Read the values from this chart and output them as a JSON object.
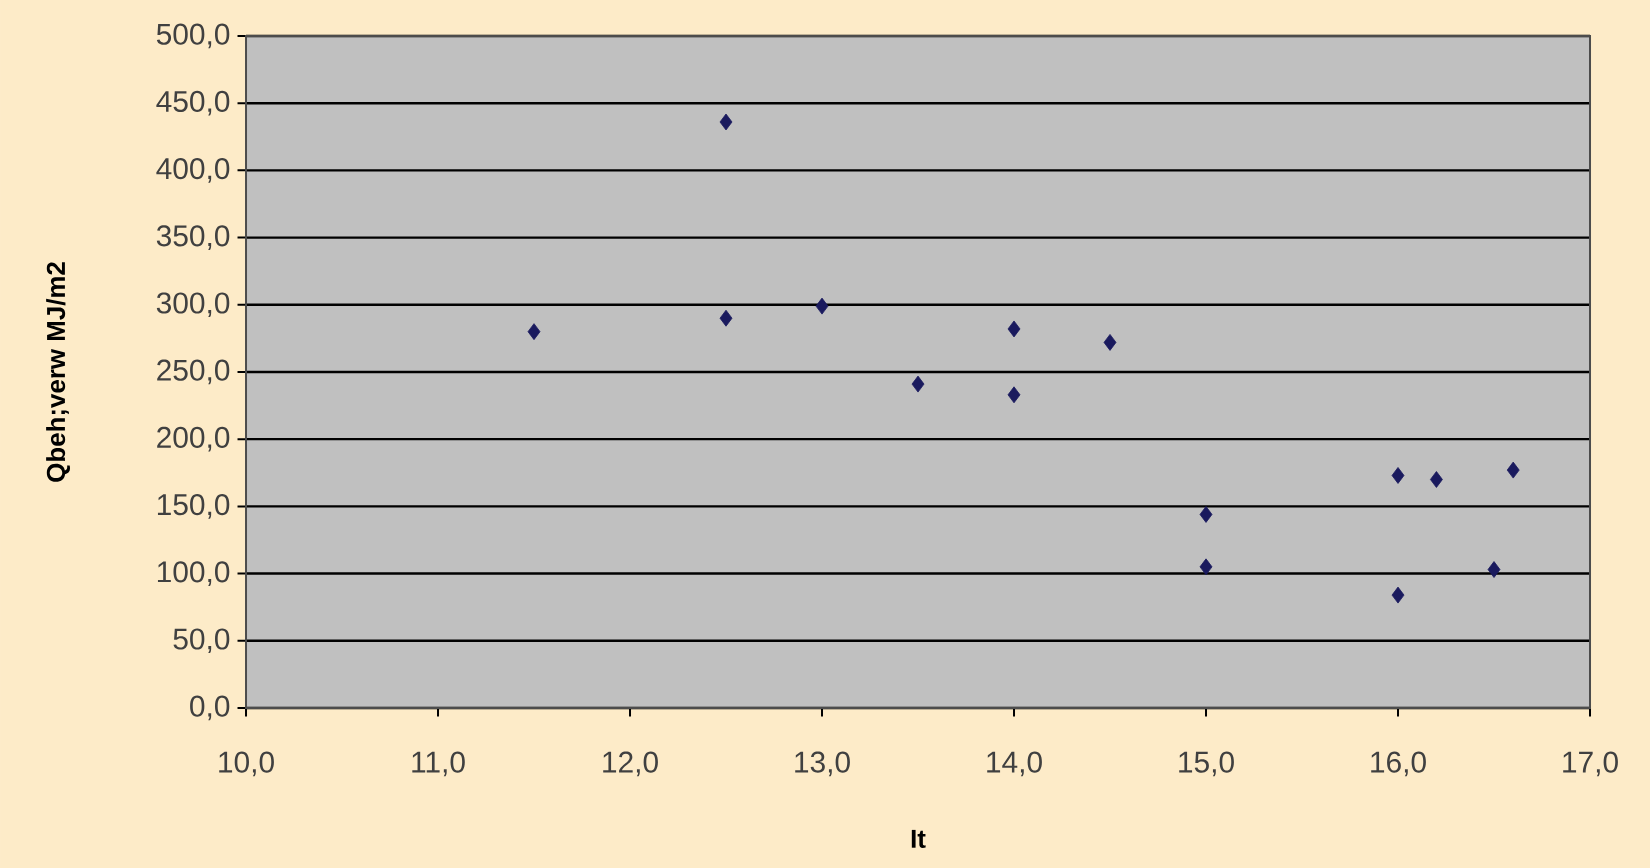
{
  "chart_data": {
    "type": "scatter",
    "xlabel": "It",
    "ylabel": "Qbeh;verw MJ/m2",
    "x": [
      11.5,
      12.5,
      12.5,
      13.0,
      13.5,
      14.0,
      14.0,
      14.5,
      15.0,
      15.0,
      16.0,
      16.0,
      16.2,
      16.5,
      16.6
    ],
    "series": [
      {
        "color": "#1a1a5e",
        "values": [
          280,
          436,
          290,
          299,
          241,
          282,
          233,
          272,
          144,
          105,
          173,
          84,
          170,
          103,
          177
        ]
      }
    ],
    "xlim": [
      10,
      17
    ],
    "ylim": [
      0,
      500
    ],
    "xticks": [
      {
        "value": 10,
        "label": "10,0"
      },
      {
        "value": 11,
        "label": "11,0"
      },
      {
        "value": 12,
        "label": "12,0"
      },
      {
        "value": 13,
        "label": "13,0"
      },
      {
        "value": 14,
        "label": "14,0"
      },
      {
        "value": 15,
        "label": "15,0"
      },
      {
        "value": 16,
        "label": "16,0"
      },
      {
        "value": 17,
        "label": "17,0"
      }
    ],
    "yticks": [
      {
        "value": 0,
        "label": "0,0"
      },
      {
        "value": 50,
        "label": "50,0"
      },
      {
        "value": 100,
        "label": "100,0"
      },
      {
        "value": 150,
        "label": "150,0"
      },
      {
        "value": 200,
        "label": "200,0"
      },
      {
        "value": 250,
        "label": "250,0"
      },
      {
        "value": 300,
        "label": "300,0"
      },
      {
        "value": 350,
        "label": "350,0"
      },
      {
        "value": 400,
        "label": "400,0"
      },
      {
        "value": 450,
        "label": "450,0"
      },
      {
        "value": 500,
        "label": "500,0"
      }
    ],
    "grid": "y",
    "marker": "diamond"
  }
}
